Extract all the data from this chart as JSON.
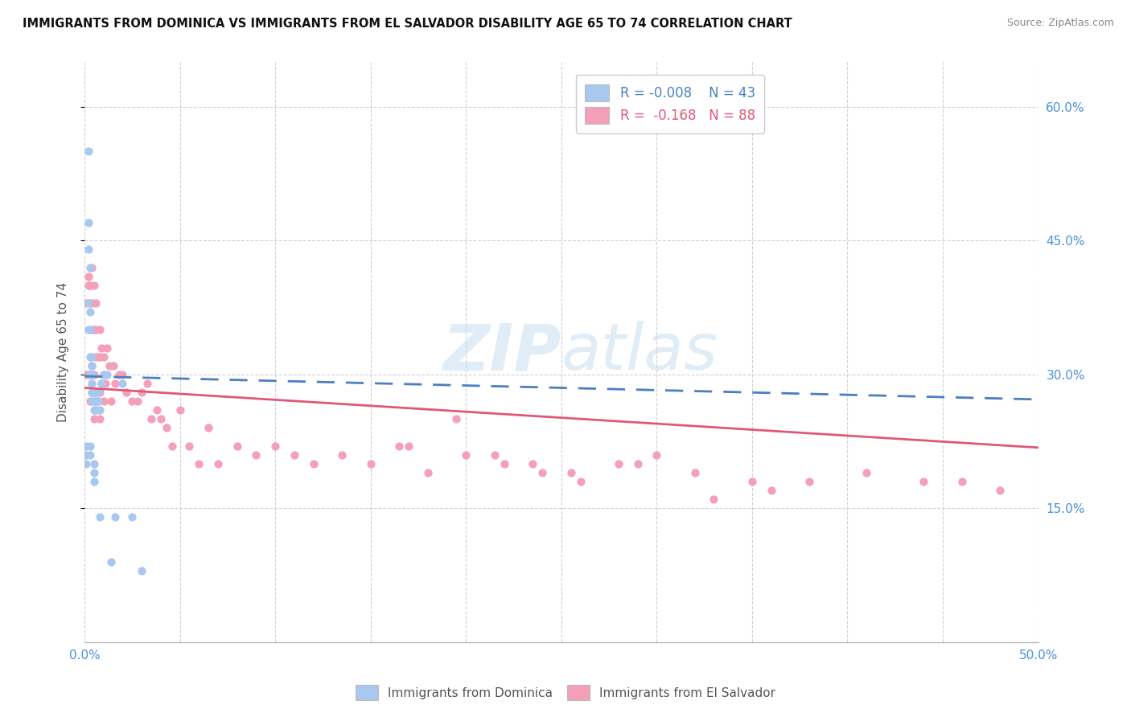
{
  "title": "IMMIGRANTS FROM DOMINICA VS IMMIGRANTS FROM EL SALVADOR DISABILITY AGE 65 TO 74 CORRELATION CHART",
  "source": "Source: ZipAtlas.com",
  "ylabel": "Disability Age 65 to 74",
  "xmin": 0.0,
  "xmax": 0.5,
  "ymin": 0.0,
  "ymax": 0.65,
  "y_ticks_right": [
    0.15,
    0.3,
    0.45,
    0.6
  ],
  "y_tick_labels_right": [
    "15.0%",
    "30.0%",
    "45.0%",
    "60.0%"
  ],
  "background_color": "#ffffff",
  "grid_color": "#cccccc",
  "watermark_zip": "ZIP",
  "watermark_atlas": "atlas",
  "color_dominica": "#a8c8f0",
  "color_el_salvador": "#f4a0b8",
  "trendline_dominica": "#4a7fc0",
  "trendline_el_salvador": "#e05878",
  "dominica_x": [
    0.001,
    0.001,
    0.001,
    0.002,
    0.002,
    0.002,
    0.002,
    0.002,
    0.003,
    0.003,
    0.003,
    0.003,
    0.003,
    0.003,
    0.003,
    0.004,
    0.004,
    0.004,
    0.004,
    0.004,
    0.004,
    0.004,
    0.005,
    0.005,
    0.005,
    0.005,
    0.005,
    0.005,
    0.005,
    0.006,
    0.006,
    0.007,
    0.007,
    0.008,
    0.008,
    0.009,
    0.01,
    0.012,
    0.014,
    0.016,
    0.02,
    0.025,
    0.03
  ],
  "dominica_y": [
    0.22,
    0.21,
    0.2,
    0.55,
    0.47,
    0.44,
    0.38,
    0.35,
    0.42,
    0.37,
    0.35,
    0.32,
    0.3,
    0.22,
    0.21,
    0.32,
    0.31,
    0.3,
    0.29,
    0.28,
    0.28,
    0.27,
    0.28,
    0.28,
    0.27,
    0.26,
    0.2,
    0.19,
    0.18,
    0.26,
    0.26,
    0.28,
    0.27,
    0.26,
    0.14,
    0.29,
    0.3,
    0.3,
    0.09,
    0.14,
    0.29,
    0.14,
    0.08
  ],
  "el_salvador_x": [
    0.001,
    0.001,
    0.002,
    0.002,
    0.002,
    0.003,
    0.003,
    0.003,
    0.003,
    0.004,
    0.004,
    0.004,
    0.004,
    0.004,
    0.005,
    0.005,
    0.005,
    0.005,
    0.005,
    0.006,
    0.006,
    0.006,
    0.006,
    0.006,
    0.007,
    0.007,
    0.008,
    0.008,
    0.008,
    0.008,
    0.009,
    0.009,
    0.01,
    0.01,
    0.01,
    0.011,
    0.012,
    0.013,
    0.014,
    0.015,
    0.016,
    0.018,
    0.02,
    0.022,
    0.025,
    0.028,
    0.03,
    0.033,
    0.035,
    0.038,
    0.04,
    0.043,
    0.046,
    0.05,
    0.055,
    0.06,
    0.065,
    0.07,
    0.08,
    0.09,
    0.1,
    0.11,
    0.12,
    0.135,
    0.15,
    0.165,
    0.18,
    0.2,
    0.22,
    0.24,
    0.26,
    0.28,
    0.3,
    0.32,
    0.35,
    0.38,
    0.41,
    0.44,
    0.46,
    0.48,
    0.17,
    0.195,
    0.215,
    0.235,
    0.255,
    0.29,
    0.33,
    0.36
  ],
  "el_salvador_y": [
    0.38,
    0.3,
    0.41,
    0.4,
    0.3,
    0.4,
    0.38,
    0.3,
    0.27,
    0.42,
    0.38,
    0.35,
    0.31,
    0.28,
    0.4,
    0.35,
    0.3,
    0.28,
    0.25,
    0.38,
    0.35,
    0.32,
    0.28,
    0.27,
    0.32,
    0.27,
    0.35,
    0.32,
    0.28,
    0.25,
    0.33,
    0.29,
    0.32,
    0.3,
    0.27,
    0.29,
    0.33,
    0.31,
    0.27,
    0.31,
    0.29,
    0.3,
    0.3,
    0.28,
    0.27,
    0.27,
    0.28,
    0.29,
    0.25,
    0.26,
    0.25,
    0.24,
    0.22,
    0.26,
    0.22,
    0.2,
    0.24,
    0.2,
    0.22,
    0.21,
    0.22,
    0.21,
    0.2,
    0.21,
    0.2,
    0.22,
    0.19,
    0.21,
    0.2,
    0.19,
    0.18,
    0.2,
    0.21,
    0.19,
    0.18,
    0.18,
    0.19,
    0.18,
    0.18,
    0.17,
    0.22,
    0.25,
    0.21,
    0.2,
    0.19,
    0.2,
    0.16,
    0.17
  ],
  "legend_label_dominica": "Immigrants from Dominica",
  "legend_label_el_salvador": "Immigrants from El Salvador",
  "legend_r1": "-0.008",
  "legend_n1": "43",
  "legend_r2": "-0.168",
  "legend_n2": "88",
  "trendline_dom_start_y": 0.298,
  "trendline_dom_end_y": 0.272,
  "trendline_sal_start_y": 0.285,
  "trendline_sal_end_y": 0.218
}
